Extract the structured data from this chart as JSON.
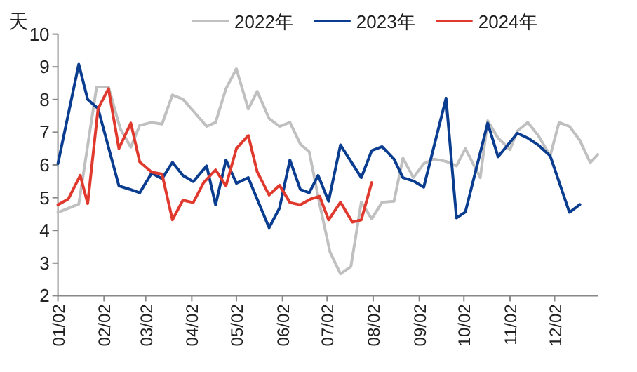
{
  "chart_data": {
    "type": "line",
    "ylabel": "天",
    "legend": "top",
    "marker": "none",
    "line_style": "solid",
    "grid": false,
    "xlim": [
      "--01-02",
      "--12-31"
    ],
    "xticks": [
      {
        "value": "--01-02",
        "label": "01/02"
      },
      {
        "value": "--02-02",
        "label": "02/02"
      },
      {
        "value": "--03-02",
        "label": "03/02"
      },
      {
        "value": "--04-02",
        "label": "04/02"
      },
      {
        "value": "--05-02",
        "label": "05/02"
      },
      {
        "value": "--06-02",
        "label": "06/02"
      },
      {
        "value": "--07-02",
        "label": "07/02"
      },
      {
        "value": "--08-02",
        "label": "08/02"
      },
      {
        "value": "--09-02",
        "label": "09/02"
      },
      {
        "value": "--10-02",
        "label": "10/02"
      },
      {
        "value": "--11-02",
        "label": "11/02"
      },
      {
        "value": "--12-02",
        "label": "12/02"
      }
    ],
    "ylim": [
      2,
      10
    ],
    "yticks": [
      2,
      3,
      4,
      5,
      6,
      7,
      8,
      9,
      10
    ],
    "series": [
      {
        "name": "2022年",
        "color": "#c0c0c0",
        "x": [
          "--01-02",
          "--01-16",
          "--01-28",
          "--02-05",
          "--02-13",
          "--02-20",
          "--02-26",
          "--03-06",
          "--03-13",
          "--03-20",
          "--03-27",
          "--04-03",
          "--04-12",
          "--04-18",
          "--04-25",
          "--05-02",
          "--05-10",
          "--05-16",
          "--05-24",
          "--05-31",
          "--06-07",
          "--06-14",
          "--06-20",
          "--06-27",
          "--07-04",
          "--07-11",
          "--07-18",
          "--07-25",
          "--08-01",
          "--08-08",
          "--08-16",
          "--08-22",
          "--08-29",
          "--09-05",
          "--09-12",
          "--09-20",
          "--09-27",
          "--10-03",
          "--10-13",
          "--10-18",
          "--10-25",
          "--11-02",
          "--11-07",
          "--11-14",
          "--11-21",
          "--11-29",
          "--12-05",
          "--12-12",
          "--12-19",
          "--12-26",
          "--12-31"
        ],
        "values": [
          4.55,
          4.8,
          8.38,
          8.38,
          7.1,
          6.54,
          7.21,
          7.3,
          7.25,
          8.14,
          8.01,
          7.65,
          7.18,
          7.3,
          8.33,
          8.94,
          7.71,
          8.25,
          7.42,
          7.18,
          7.3,
          6.64,
          6.4,
          4.8,
          3.33,
          2.67,
          2.89,
          4.86,
          4.35,
          4.86,
          4.89,
          6.21,
          5.61,
          6.04,
          6.18,
          6.11,
          5.97,
          6.5,
          5.61,
          7.35,
          6.82,
          6.47,
          7.04,
          7.3,
          6.9,
          6.28,
          7.3,
          7.18,
          6.75,
          6.07,
          6.32
        ]
      },
      {
        "name": "2023年",
        "color": "#0a3d8f",
        "x": [
          "--01-02",
          "--01-16",
          "--01-22",
          "--01-29",
          "--02-12",
          "--02-19",
          "--02-26",
          "--03-06",
          "--03-13",
          "--03-20",
          "--03-27",
          "--04-03",
          "--04-12",
          "--04-18",
          "--04-25",
          "--05-02",
          "--05-10",
          "--05-24",
          "--05-31",
          "--06-07",
          "--06-14",
          "--06-20",
          "--06-26",
          "--07-03",
          "--07-11",
          "--07-25",
          "--08-01",
          "--08-08",
          "--08-16",
          "--08-22",
          "--08-29",
          "--09-05",
          "--09-20",
          "--09-27",
          "--10-03",
          "--10-18",
          "--10-25",
          "--11-07",
          "--11-14",
          "--11-21",
          "--11-29",
          "--12-12",
          "--12-19"
        ],
        "values": [
          6.04,
          9.08,
          8.0,
          7.72,
          5.36,
          5.26,
          5.15,
          5.75,
          5.58,
          6.08,
          5.68,
          5.49,
          5.97,
          4.78,
          6.15,
          5.44,
          5.61,
          4.08,
          4.68,
          6.15,
          5.25,
          5.15,
          5.68,
          4.89,
          6.61,
          5.61,
          6.44,
          6.56,
          6.18,
          5.61,
          5.51,
          5.32,
          8.04,
          4.38,
          4.56,
          7.28,
          6.25,
          6.97,
          6.82,
          6.61,
          6.28,
          4.55,
          4.79
        ]
      },
      {
        "name": "2024年",
        "color": "#e03a2f",
        "x": [
          "--01-02",
          "--01-09",
          "--01-17",
          "--01-22",
          "--01-29",
          "--02-05",
          "--02-12",
          "--02-20",
          "--02-26",
          "--03-06",
          "--03-13",
          "--03-20",
          "--03-27",
          "--04-03",
          "--04-10",
          "--04-18",
          "--04-25",
          "--05-02",
          "--05-10",
          "--05-16",
          "--05-24",
          "--05-31",
          "--06-07",
          "--06-14",
          "--06-21",
          "--06-27",
          "--07-03",
          "--07-11",
          "--07-19",
          "--07-25",
          "--08-01"
        ],
        "values": [
          4.78,
          4.96,
          5.68,
          4.82,
          7.72,
          8.33,
          6.5,
          7.28,
          6.09,
          5.78,
          5.72,
          4.32,
          4.92,
          4.85,
          5.46,
          5.85,
          5.36,
          6.5,
          6.9,
          5.79,
          5.08,
          5.38,
          4.85,
          4.78,
          4.96,
          5.04,
          4.32,
          4.86,
          4.25,
          4.32,
          5.46
        ]
      }
    ]
  }
}
